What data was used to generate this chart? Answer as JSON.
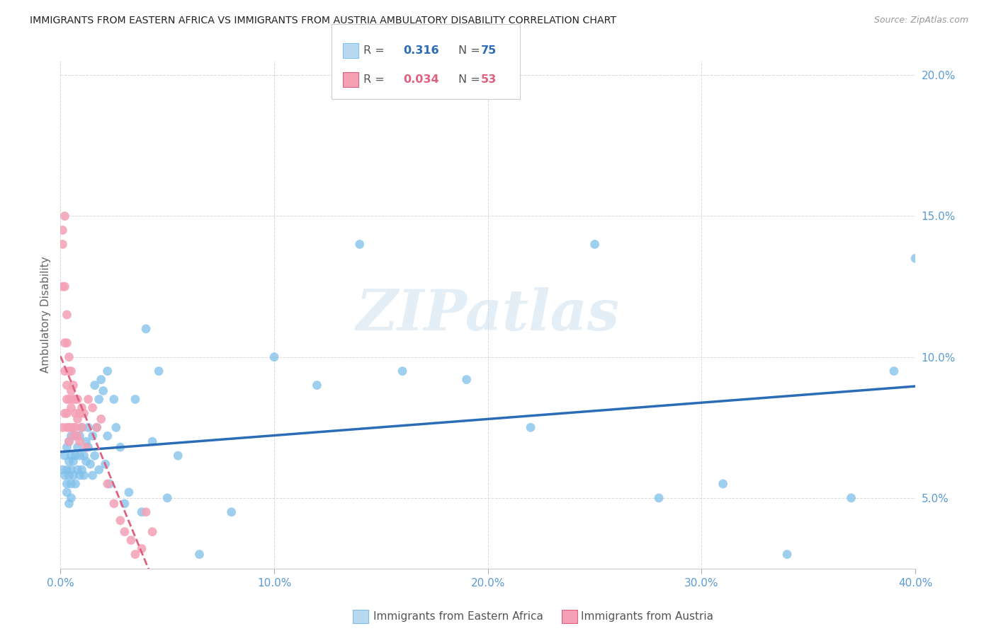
{
  "title": "IMMIGRANTS FROM EASTERN AFRICA VS IMMIGRANTS FROM AUSTRIA AMBULATORY DISABILITY CORRELATION CHART",
  "source": "Source: ZipAtlas.com",
  "ylabel": "Ambulatory Disability",
  "series1_label": "Immigrants from Eastern Africa",
  "series1_color": "#7fbfea",
  "series1_line_color": "#2b6cb8",
  "series2_label": "Immigrants from Austria",
  "series2_color": "#f4a0b5",
  "series2_line_color": "#e06080",
  "xlim": [
    0.0,
    0.4
  ],
  "ylim": [
    0.025,
    0.205
  ],
  "x_ticks": [
    0.0,
    0.1,
    0.2,
    0.3,
    0.4
  ],
  "x_tick_labels": [
    "0.0%",
    "10.0%",
    "20.0%",
    "30.0%",
    "40.0%"
  ],
  "y_ticks": [
    0.05,
    0.1,
    0.15,
    0.2
  ],
  "y_tick_labels": [
    "5.0%",
    "10.0%",
    "15.0%",
    "20.0%"
  ],
  "background_color": "#ffffff",
  "grid_color": "#d0d0d0",
  "title_color": "#222222",
  "axis_label_color": "#5b9bd5",
  "legend_R1": "0.316",
  "legend_N1": "75",
  "legend_R2": "0.034",
  "legend_N2": "53",
  "watermark": "ZIPatlas",
  "series1_scatter_x": [
    0.001,
    0.002,
    0.002,
    0.003,
    0.003,
    0.003,
    0.003,
    0.004,
    0.004,
    0.004,
    0.004,
    0.005,
    0.005,
    0.005,
    0.005,
    0.005,
    0.006,
    0.006,
    0.007,
    0.007,
    0.007,
    0.008,
    0.008,
    0.009,
    0.009,
    0.009,
    0.01,
    0.01,
    0.011,
    0.011,
    0.012,
    0.012,
    0.013,
    0.013,
    0.014,
    0.015,
    0.015,
    0.016,
    0.016,
    0.017,
    0.018,
    0.018,
    0.019,
    0.02,
    0.021,
    0.022,
    0.022,
    0.023,
    0.025,
    0.026,
    0.028,
    0.03,
    0.032,
    0.035,
    0.038,
    0.04,
    0.043,
    0.046,
    0.05,
    0.055,
    0.065,
    0.08,
    0.1,
    0.12,
    0.14,
    0.16,
    0.19,
    0.22,
    0.25,
    0.28,
    0.31,
    0.34,
    0.37,
    0.39,
    0.4
  ],
  "series1_scatter_y": [
    0.06,
    0.058,
    0.065,
    0.055,
    0.06,
    0.068,
    0.052,
    0.058,
    0.063,
    0.07,
    0.048,
    0.06,
    0.065,
    0.055,
    0.072,
    0.05,
    0.063,
    0.058,
    0.065,
    0.055,
    0.072,
    0.06,
    0.068,
    0.065,
    0.058,
    0.072,
    0.06,
    0.075,
    0.065,
    0.058,
    0.07,
    0.063,
    0.075,
    0.068,
    0.062,
    0.058,
    0.072,
    0.065,
    0.09,
    0.075,
    0.085,
    0.06,
    0.092,
    0.088,
    0.062,
    0.095,
    0.072,
    0.055,
    0.085,
    0.075,
    0.068,
    0.048,
    0.052,
    0.085,
    0.045,
    0.11,
    0.07,
    0.095,
    0.05,
    0.065,
    0.03,
    0.045,
    0.1,
    0.09,
    0.14,
    0.095,
    0.092,
    0.075,
    0.14,
    0.05,
    0.055,
    0.03,
    0.05,
    0.095,
    0.135
  ],
  "series2_scatter_x": [
    0.001,
    0.001,
    0.001,
    0.001,
    0.002,
    0.002,
    0.002,
    0.002,
    0.002,
    0.003,
    0.003,
    0.003,
    0.003,
    0.003,
    0.003,
    0.004,
    0.004,
    0.004,
    0.004,
    0.004,
    0.005,
    0.005,
    0.005,
    0.005,
    0.006,
    0.006,
    0.006,
    0.006,
    0.007,
    0.007,
    0.007,
    0.008,
    0.008,
    0.008,
    0.009,
    0.009,
    0.01,
    0.01,
    0.011,
    0.012,
    0.013,
    0.015,
    0.017,
    0.019,
    0.022,
    0.025,
    0.028,
    0.03,
    0.033,
    0.035,
    0.038,
    0.04,
    0.043
  ],
  "series2_scatter_y": [
    0.14,
    0.125,
    0.075,
    0.145,
    0.15,
    0.125,
    0.105,
    0.095,
    0.08,
    0.115,
    0.105,
    0.09,
    0.085,
    0.08,
    0.075,
    0.1,
    0.095,
    0.085,
    0.075,
    0.07,
    0.095,
    0.088,
    0.082,
    0.075,
    0.09,
    0.085,
    0.075,
    0.072,
    0.085,
    0.08,
    0.075,
    0.085,
    0.078,
    0.072,
    0.08,
    0.07,
    0.082,
    0.075,
    0.08,
    0.068,
    0.085,
    0.082,
    0.075,
    0.078,
    0.055,
    0.048,
    0.042,
    0.038,
    0.035,
    0.03,
    0.032,
    0.045,
    0.038
  ]
}
